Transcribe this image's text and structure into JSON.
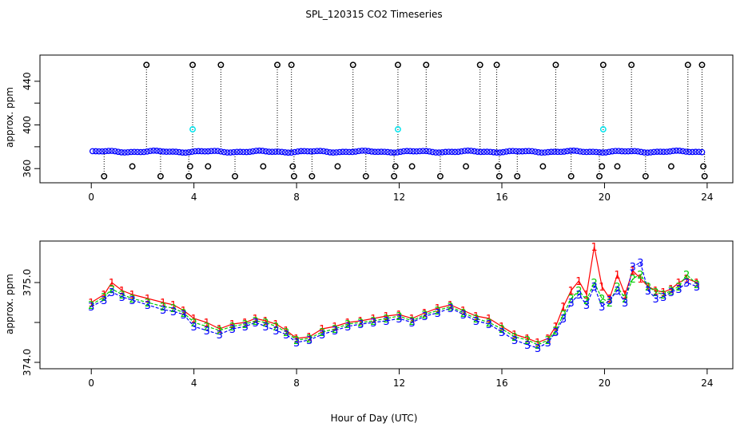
{
  "title": "SPL_120315  CO2 Timeseries",
  "xlabel": "Hour of Day (UTC)",
  "colors": {
    "series_1": "#ff0000",
    "series_2": "#00cc00",
    "series_3": "#0000ff",
    "raw_points": "#0000ff",
    "flag_points": "#000000",
    "cal_points": "#00e5ee"
  },
  "chart_data": [
    {
      "type": "scatter",
      "ylabel": "approx. ppm",
      "xlim": [
        -2,
        25
      ],
      "ylim": [
        347,
        464
      ],
      "xticks": [
        0,
        4,
        8,
        12,
        16,
        20,
        24
      ],
      "xtick_labels": [
        "0",
        "4",
        "8",
        "12",
        "16",
        "20",
        "24"
      ],
      "yticks": [
        360,
        380,
        400,
        420,
        440
      ],
      "ytick_labels": [
        "360",
        "",
        "400",
        "",
        "440"
      ],
      "baseline_ppm": 375.5,
      "high_flag_ppm": 455,
      "low_flag_ppm": 353,
      "mid_flag_ppm": 362,
      "cal_ppm": 396,
      "high_flag_hours": [
        2.15,
        3.95,
        5.05,
        7.25,
        7.8,
        10.2,
        11.95,
        13.05,
        15.15,
        15.8,
        18.1,
        19.95,
        21.05,
        23.25,
        23.8
      ],
      "low_flag_hours": [
        0.5,
        2.7,
        3.8,
        5.6,
        7.9,
        8.6,
        10.7,
        11.8,
        13.6,
        15.9,
        16.6,
        18.7,
        19.8,
        21.6,
        23.9
      ],
      "mid_flag_hours": [
        1.6,
        3.85,
        4.55,
        6.7,
        7.85,
        9.6,
        11.85,
        12.5,
        14.6,
        15.85,
        17.6,
        19.9,
        20.5,
        22.6,
        23.85
      ],
      "cal_hours": [
        3.95,
        11.95,
        19.95
      ],
      "bulk_range_hours": [
        0.05,
        23.85
      ]
    },
    {
      "type": "line",
      "ylabel": "approx. ppm",
      "xlim": [
        -2,
        25
      ],
      "ylim": [
        373.92,
        375.52
      ],
      "xticks": [
        0,
        4,
        8,
        12,
        16,
        20,
        24
      ],
      "xtick_labels": [
        "0",
        "4",
        "8",
        "12",
        "16",
        "20",
        "24"
      ],
      "yticks": [
        374.0,
        374.5,
        375.0
      ],
      "ytick_labels": [
        "374.0",
        "",
        "375.0"
      ],
      "x": [
        0,
        0.5,
        0.8,
        1.2,
        1.6,
        2.2,
        2.8,
        3.2,
        3.6,
        4.0,
        4.5,
        5.0,
        5.5,
        6.0,
        6.4,
        6.8,
        7.2,
        7.6,
        8.0,
        8.5,
        9.0,
        9.5,
        10.0,
        10.5,
        11.0,
        11.5,
        12.0,
        12.5,
        13.0,
        13.5,
        14.0,
        14.5,
        15.0,
        15.5,
        16.0,
        16.5,
        17.0,
        17.4,
        17.8,
        18.1,
        18.4,
        18.7,
        19.0,
        19.3,
        19.6,
        19.9,
        20.2,
        20.5,
        20.8,
        21.1,
        21.4,
        21.7,
        22.0,
        22.3,
        22.6,
        22.9,
        23.2,
        23.6
      ],
      "series": [
        {
          "name": "1",
          "values": [
            374.75,
            374.85,
            375.0,
            374.9,
            374.85,
            374.8,
            374.75,
            374.72,
            374.65,
            374.55,
            374.5,
            374.42,
            374.48,
            374.5,
            374.55,
            374.52,
            374.48,
            374.4,
            374.3,
            374.32,
            374.42,
            374.45,
            374.5,
            374.52,
            374.55,
            374.58,
            374.6,
            374.55,
            374.62,
            374.68,
            374.72,
            374.65,
            374.58,
            374.55,
            374.45,
            374.35,
            374.3,
            374.25,
            374.3,
            374.45,
            374.7,
            374.9,
            375.02,
            374.85,
            375.45,
            374.95,
            374.8,
            375.1,
            374.85,
            375.15,
            375.05,
            374.95,
            374.9,
            374.88,
            374.92,
            375.0,
            375.05,
            375.0
          ]
        },
        {
          "name": "2",
          "values": [
            374.72,
            374.82,
            374.92,
            374.85,
            374.8,
            374.75,
            374.7,
            374.68,
            374.62,
            374.5,
            374.45,
            374.4,
            374.45,
            374.48,
            374.52,
            374.5,
            374.45,
            374.38,
            374.28,
            374.3,
            374.38,
            374.42,
            374.48,
            374.5,
            374.52,
            374.55,
            374.58,
            374.52,
            374.6,
            374.65,
            374.7,
            374.62,
            374.55,
            374.5,
            374.42,
            374.32,
            374.28,
            374.22,
            374.28,
            374.4,
            374.6,
            374.8,
            374.9,
            374.78,
            375.0,
            374.8,
            374.75,
            374.95,
            374.8,
            375.05,
            375.1,
            374.95,
            374.88,
            374.85,
            374.9,
            374.95,
            375.1,
            374.98
          ]
        },
        {
          "name": "3",
          "values": [
            374.7,
            374.78,
            374.88,
            374.82,
            374.78,
            374.72,
            374.66,
            374.64,
            374.6,
            374.45,
            374.4,
            374.35,
            374.42,
            374.45,
            374.5,
            374.45,
            374.4,
            374.35,
            374.25,
            374.28,
            374.35,
            374.4,
            374.45,
            374.48,
            374.5,
            374.52,
            374.55,
            374.5,
            374.58,
            374.62,
            374.68,
            374.6,
            374.52,
            374.48,
            374.38,
            374.28,
            374.22,
            374.18,
            374.25,
            374.38,
            374.55,
            374.75,
            374.85,
            374.72,
            374.95,
            374.7,
            374.78,
            374.9,
            374.75,
            375.2,
            375.25,
            374.9,
            374.8,
            374.82,
            374.88,
            374.92,
            375.0,
            374.95
          ]
        }
      ]
    }
  ]
}
